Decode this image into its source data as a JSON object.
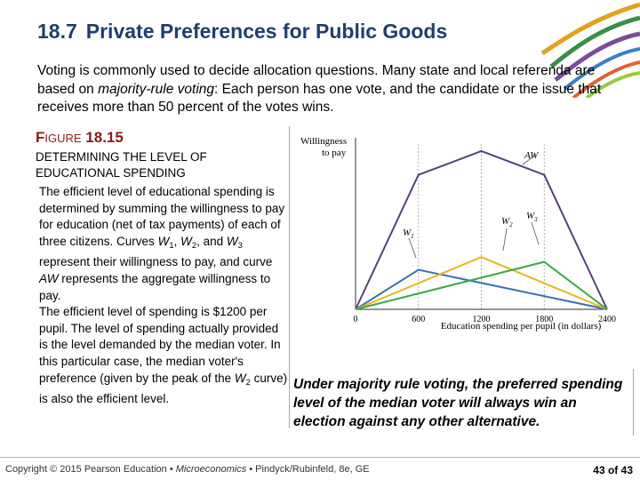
{
  "slide": {
    "number": "18.7",
    "title": "Private Preferences for Public Goods",
    "intro_part1": "Voting is commonly used to decide allocation questions. Many state and local referenda are based on ",
    "intro_emph": "majority-rule voting",
    "intro_part2": ": Each person has one vote, and the candidate or the issue that receives more than 50 percent of the votes wins.",
    "figure_label_prefix": "F",
    "figure_label_rest": "IGURE",
    "figure_number": "18.15",
    "figure_title": "DETERMINING THE LEVEL OF EDUCATIONAL SPENDING",
    "desc_1": "The efficient level of educational spending is determined by summing the willingness to pay for education (net of tax payments) of each of three citizens. Curves ",
    "w1": "W",
    "w1_sub": "1",
    "sep_comma": ", ",
    "w2": "W",
    "w2_sub": "2",
    "and_word": ", and ",
    "w3": "W",
    "w3_sub": "3",
    "desc_2": " represent their willingness to pay, and curve ",
    "aw": "AW",
    "desc_3": " represents the aggregate willingness to pay.",
    "desc_4": "The efficient level of spending is $1200 per pupil. The level of spending actually provided is the level demanded by the median voter. In this particular case, the median voter's preference (given by the peak of the ",
    "w2b": "W",
    "w2b_sub": "2",
    "desc_5": " curve) is also the efficient level.",
    "bottom_note": "Under majority rule voting, the preferred spending level of the median voter will always win an election against any other alternative."
  },
  "footer": {
    "copyright": "Copyright © 2015 Pearson Education • ",
    "book": "Microeconomics",
    "rest": " • Pindyck/Rubinfeld, 8e, GE",
    "page_current": "43",
    "page_of": " of ",
    "page_total": "43"
  },
  "chart_data": {
    "type": "line",
    "ylabel": "Willingness to pay",
    "xlabel": "Education spending per pupil (in dollars)",
    "x_ticks": [
      "0",
      "600",
      "1200",
      "1800",
      "2400"
    ],
    "xlim": [
      0,
      2400
    ],
    "series": [
      {
        "name": "AW",
        "color": "#5a3f78",
        "x": [
          0,
          600,
          1200,
          1800,
          2400
        ],
        "y": [
          0,
          0.85,
          1.0,
          0.85,
          0
        ]
      },
      {
        "name": "W1",
        "color": "#3a6fb5",
        "x": [
          0,
          600,
          2400
        ],
        "y": [
          0,
          0.25,
          0
        ]
      },
      {
        "name": "W2",
        "color": "#e2b81c",
        "x": [
          0,
          1200,
          2400
        ],
        "y": [
          0,
          0.33,
          0
        ]
      },
      {
        "name": "W3",
        "color": "#3aa84a",
        "x": [
          0,
          1800,
          2400
        ],
        "y": [
          0,
          0.3,
          0
        ]
      }
    ],
    "label_x1": "W",
    "label_x1_sub": "1",
    "label_x2": "W",
    "label_x2_sub": "2",
    "label_x3": "W",
    "label_x3_sub": "3",
    "label_aw": "AW"
  },
  "colors": {
    "title": "#1f3f6e",
    "figure_label": "#8b1a1a"
  },
  "icons": {
    "decoration": "colorful-ribbons-decoration"
  }
}
